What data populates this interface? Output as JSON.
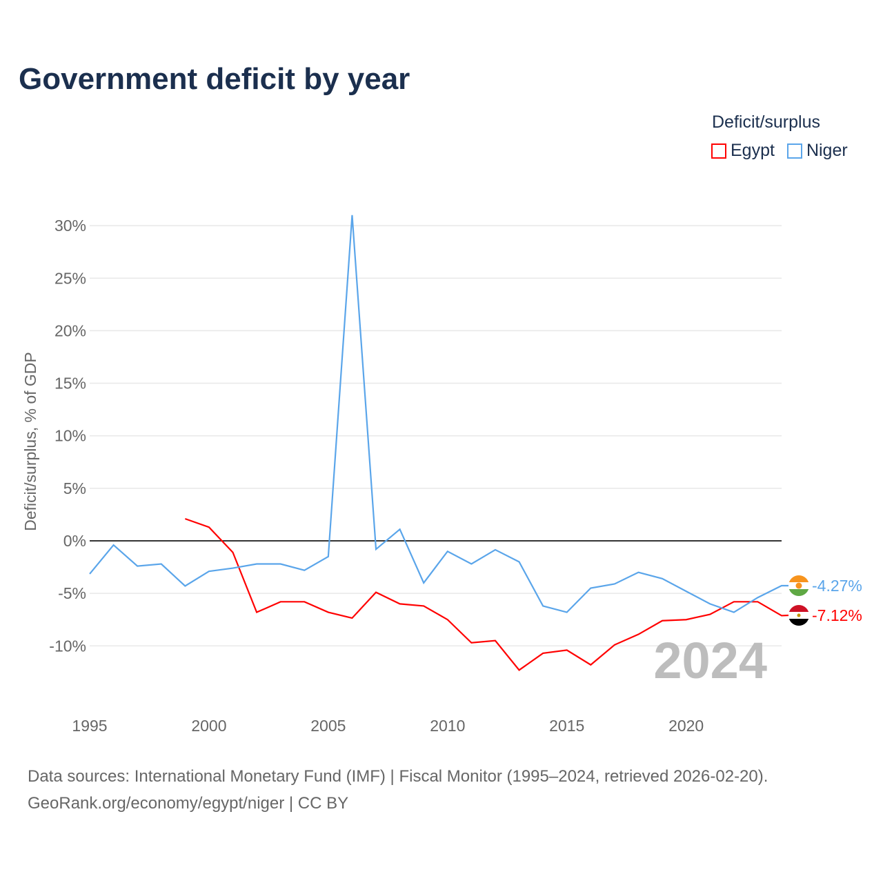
{
  "title": "Government deficit by year",
  "legend": {
    "title": "Deficit/surplus",
    "items": [
      {
        "label": "Egypt",
        "color": "#ff0000"
      },
      {
        "label": "Niger",
        "color": "#5aa5ea"
      }
    ]
  },
  "source": {
    "line1": "Data sources: International Monetary Fund (IMF) | Fiscal Monitor (1995–2024, retrieved 2026-02-20).",
    "line2": "GeoRank.org/economy/egypt/niger | CC BY"
  },
  "chart_data": {
    "type": "line",
    "title": "Government deficit by year",
    "xlabel": "",
    "ylabel": "Deficit/surplus, % of GDP",
    "year_label": "2024",
    "xlim": [
      1995,
      2024
    ],
    "ylim": [
      -15,
      31
    ],
    "x_ticks": [
      "1995",
      "2000",
      "2005",
      "2010",
      "2015",
      "2020"
    ],
    "y_ticks": [
      {
        "v": 30,
        "l": "30%"
      },
      {
        "v": 25,
        "l": "25%"
      },
      {
        "v": 20,
        "l": "20%"
      },
      {
        "v": 15,
        "l": "15%"
      },
      {
        "v": 10,
        "l": "10%"
      },
      {
        "v": 5,
        "l": "5%"
      },
      {
        "v": 0,
        "l": "0%"
      },
      {
        "v": -5,
        "l": "-5%"
      },
      {
        "v": -10,
        "l": "-10%"
      }
    ],
    "series": [
      {
        "name": "Egypt",
        "color": "#ff0000",
        "end_label": "-7.12%",
        "x": [
          1999,
          2000,
          2001,
          2002,
          2003,
          2004,
          2005,
          2006,
          2007,
          2008,
          2009,
          2010,
          2011,
          2012,
          2013,
          2014,
          2015,
          2016,
          2017,
          2018,
          2019,
          2020,
          2021,
          2022,
          2023,
          2024
        ],
        "values": [
          2.1,
          1.3,
          -1.1,
          -6.8,
          -5.8,
          -5.8,
          -6.8,
          -7.35,
          -4.9,
          -6.0,
          -6.2,
          -7.5,
          -9.7,
          -9.5,
          -12.3,
          -10.7,
          -10.4,
          -11.8,
          -9.9,
          -8.9,
          -7.6,
          -7.5,
          -7.0,
          -5.8,
          -5.8,
          -7.12
        ]
      },
      {
        "name": "Niger",
        "color": "#5aa5ea",
        "end_label": "-4.27%",
        "x": [
          1995,
          1996,
          1997,
          1998,
          1999,
          2000,
          2001,
          2002,
          2003,
          2004,
          2005,
          2006,
          2007,
          2008,
          2009,
          2010,
          2011,
          2012,
          2013,
          2014,
          2015,
          2016,
          2017,
          2018,
          2019,
          2020,
          2021,
          2022,
          2023,
          2024
        ],
        "values": [
          -3.15,
          -0.4,
          -2.4,
          -2.2,
          -4.3,
          -2.9,
          -2.6,
          -2.2,
          -2.2,
          -2.8,
          -1.5,
          31.0,
          -0.8,
          1.1,
          -4.0,
          -1.0,
          -2.2,
          -0.85,
          -2.0,
          -6.2,
          -6.8,
          -4.5,
          -4.1,
          -3.0,
          -3.6,
          -4.8,
          -6.0,
          -6.8,
          -5.4,
          -4.27
        ]
      }
    ]
  }
}
